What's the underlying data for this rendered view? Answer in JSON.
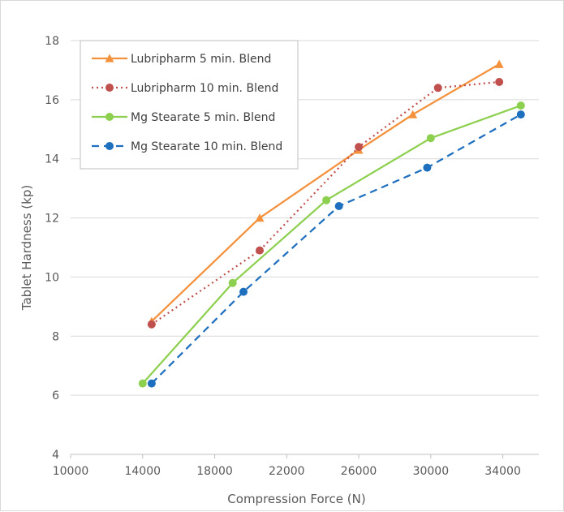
{
  "chart_data": {
    "type": "line",
    "title": "",
    "xlabel": "Compression Force (N)",
    "ylabel": "Tablet Hardness (kp)",
    "xlim": [
      10000,
      36000
    ],
    "ylim": [
      4,
      18
    ],
    "x_ticks": [
      10000,
      14000,
      18000,
      22000,
      26000,
      30000,
      34000
    ],
    "y_ticks": [
      4,
      6,
      8,
      10,
      12,
      14,
      16,
      18
    ],
    "grid": "horizontal",
    "legend_position": "top-left",
    "series": [
      {
        "name": "Lubripharm 5 min. Blend",
        "color": "#F4913D",
        "marker": "triangle",
        "line_style": "solid",
        "points": [
          {
            "x": 14500,
            "y": 8.5
          },
          {
            "x": 20500,
            "y": 12.0
          },
          {
            "x": 26000,
            "y": 14.3
          },
          {
            "x": 29000,
            "y": 15.5
          },
          {
            "x": 33800,
            "y": 17.2
          }
        ]
      },
      {
        "name": "Lubripharm 10 min. Blend",
        "color": "#C0504D",
        "marker": "circle",
        "line_style": "dotted",
        "points": [
          {
            "x": 14500,
            "y": 8.4
          },
          {
            "x": 20500,
            "y": 10.9
          },
          {
            "x": 26000,
            "y": 14.4
          },
          {
            "x": 30400,
            "y": 16.4
          },
          {
            "x": 33800,
            "y": 16.6
          }
        ]
      },
      {
        "name": "Mg Stearate 5 min. Blend",
        "color": "#8DD04F",
        "marker": "circle",
        "line_style": "solid",
        "points": [
          {
            "x": 14000,
            "y": 6.4
          },
          {
            "x": 19000,
            "y": 9.8
          },
          {
            "x": 24200,
            "y": 12.6
          },
          {
            "x": 30000,
            "y": 14.7
          },
          {
            "x": 35000,
            "y": 15.8
          }
        ]
      },
      {
        "name": "Mg Stearate 10 min. Blend",
        "color": "#1F6FBF",
        "marker": "circle",
        "line_style": "dashed",
        "points": [
          {
            "x": 14500,
            "y": 6.4
          },
          {
            "x": 19600,
            "y": 9.5
          },
          {
            "x": 24900,
            "y": 12.4
          },
          {
            "x": 29800,
            "y": 13.7
          },
          {
            "x": 35000,
            "y": 15.5
          }
        ]
      }
    ]
  }
}
